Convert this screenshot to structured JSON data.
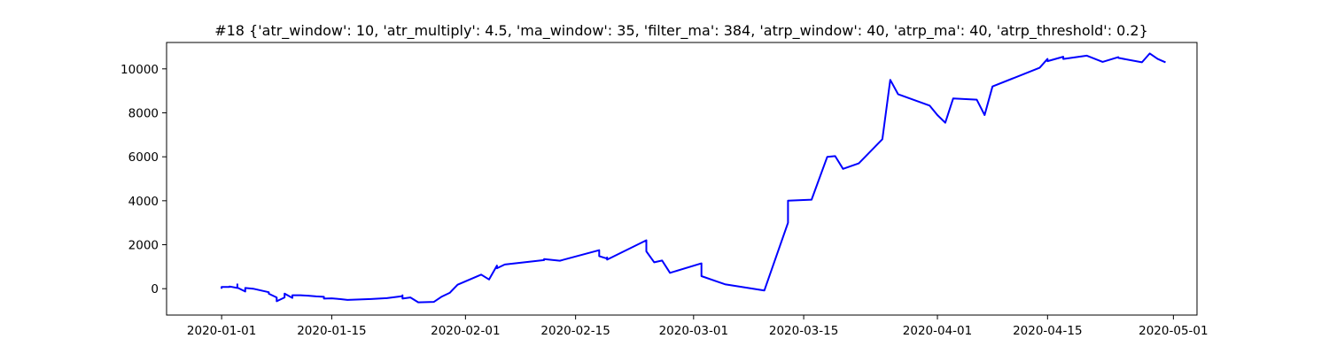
{
  "chart_data": {
    "type": "line",
    "title": "#18 {'atr_window': 10, 'atr_multiply': 4.5, 'ma_window': 35, 'filter_ma': 384, 'atrp_window': 40, 'atrp_ma': 40, 'atrp_threshold': 0.2}",
    "xlabel": "",
    "ylabel": "",
    "xlim": [
      "2019-12-25",
      "2020-05-04"
    ],
    "ylim": [
      -1200,
      11200
    ],
    "grid": false,
    "legend": "none",
    "line_color": "#0000ff",
    "x_ticks": [
      "2020-01-01",
      "2020-01-15",
      "2020-02-01",
      "2020-02-15",
      "2020-03-01",
      "2020-03-15",
      "2020-04-01",
      "2020-04-15",
      "2020-05-01"
    ],
    "y_ticks": [
      0,
      2000,
      4000,
      6000,
      8000,
      10000
    ],
    "series": [
      {
        "x": [
          "2020-01-01",
          "2020-01-01",
          "2020-01-02",
          "2020-01-02",
          "2020-01-03",
          "2020-01-03",
          "2020-01-03",
          "2020-01-04",
          "2020-01-04",
          "2020-01-05",
          "2020-01-07",
          "2020-01-07",
          "2020-01-08",
          "2020-01-08",
          "2020-01-09",
          "2020-01-09",
          "2020-01-10",
          "2020-01-10",
          "2020-01-11",
          "2020-01-12",
          "2020-01-13",
          "2020-01-14",
          "2020-01-14",
          "2020-01-15",
          "2020-01-16",
          "2020-01-17",
          "2020-01-20",
          "2020-01-22",
          "2020-01-24",
          "2020-01-24",
          "2020-01-24",
          "2020-01-25",
          "2020-01-26",
          "2020-01-28",
          "2020-01-29",
          "2020-01-30",
          "2020-01-31",
          "2020-02-03",
          "2020-02-04",
          "2020-02-05",
          "2020-02-05",
          "2020-02-06",
          "2020-02-11",
          "2020-02-11",
          "2020-02-13",
          "2020-02-18",
          "2020-02-18",
          "2020-02-19",
          "2020-02-19",
          "2020-02-19",
          "2020-02-24",
          "2020-02-24",
          "2020-02-25",
          "2020-02-26",
          "2020-02-27",
          "2020-03-02",
          "2020-03-02",
          "2020-03-04",
          "2020-03-05",
          "2020-03-10",
          "2020-03-13",
          "2020-03-13",
          "2020-03-16",
          "2020-03-18",
          "2020-03-19",
          "2020-03-20",
          "2020-03-22",
          "2020-03-25",
          "2020-03-26",
          "2020-03-27",
          "2020-03-31",
          "2020-04-01",
          "2020-04-02",
          "2020-04-03",
          "2020-04-06",
          "2020-04-07",
          "2020-04-08",
          "2020-04-14",
          "2020-04-15",
          "2020-04-15",
          "2020-04-17",
          "2020-04-17",
          "2020-04-20",
          "2020-04-20",
          "2020-04-22",
          "2020-04-24",
          "2020-04-24",
          "2020-04-27",
          "2020-04-28",
          "2020-04-29",
          "2020-04-30"
        ],
        "y": [
          0,
          80,
          80,
          100,
          30,
          200,
          50,
          -130,
          30,
          0,
          -160,
          -230,
          -400,
          -570,
          -400,
          -220,
          -420,
          -300,
          -300,
          -320,
          -350,
          -370,
          -450,
          -440,
          -470,
          -510,
          -470,
          -430,
          -340,
          -300,
          -450,
          -400,
          -620,
          -600,
          -360,
          -190,
          180,
          640,
          420,
          1050,
          930,
          1100,
          1300,
          1350,
          1270,
          1750,
          1480,
          1370,
          1420,
          1320,
          2200,
          1700,
          1200,
          1280,
          720,
          1150,
          570,
          320,
          200,
          -80,
          3000,
          4000,
          4050,
          6000,
          6030,
          5450,
          5700,
          6800,
          9500,
          8850,
          8330,
          7900,
          7550,
          8650,
          8600,
          7900,
          9200,
          10050,
          10450,
          10350,
          10550,
          10450,
          10600,
          10600,
          10320,
          10530,
          10500,
          10300,
          10700,
          10450,
          10300
        ]
      }
    ]
  }
}
